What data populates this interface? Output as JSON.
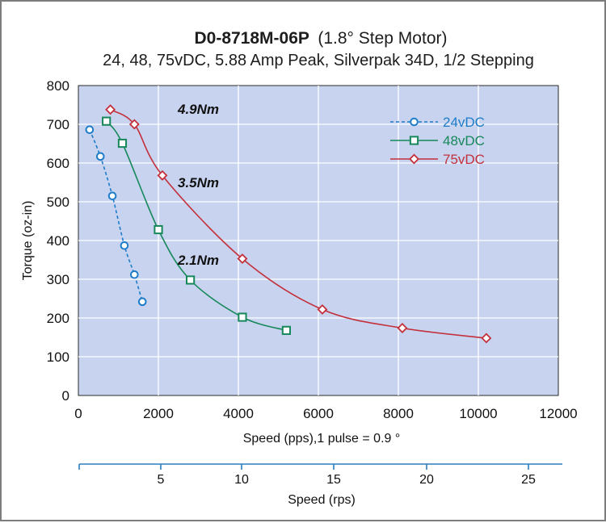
{
  "chart_data": {
    "type": "line",
    "title_bold": "D0-8718M-06P",
    "title_rest": "(1.8° Step Motor)",
    "subtitle": "24, 48, 75vDC, 5.88 Amp Peak, Silverpak 34D, 1/2 Stepping",
    "xlabel": "Speed (pps),1 pulse = 0.9   °",
    "ylabel": "Torque (oz-in)",
    "xlim": [
      0,
      12000
    ],
    "ylim": [
      0,
      800
    ],
    "x_ticks": [
      "0",
      "2000",
      "4000",
      "6000",
      "8000",
      "10000",
      "12000"
    ],
    "y_ticks": [
      "0",
      "100",
      "200",
      "300",
      "400",
      "500",
      "600",
      "700",
      "800"
    ],
    "grid": true,
    "legend_position": "top-right",
    "series": [
      {
        "name": "24vDC",
        "color": "#1e7cc8",
        "marker": "circle",
        "dashed": true,
        "points": [
          [
            280,
            686
          ],
          [
            550,
            617
          ],
          [
            850,
            515
          ],
          [
            1150,
            387
          ],
          [
            1400,
            312
          ],
          [
            1600,
            242
          ]
        ]
      },
      {
        "name": "48vDC",
        "color": "#17885a",
        "marker": "square",
        "dashed": false,
        "points": [
          [
            700,
            708
          ],
          [
            1100,
            651
          ],
          [
            2000,
            428
          ],
          [
            2800,
            298
          ],
          [
            4100,
            202
          ],
          [
            5200,
            168
          ]
        ]
      },
      {
        "name": "75vDC",
        "color": "#c4303c",
        "marker": "diamond",
        "dashed": false,
        "points": [
          [
            800,
            738
          ],
          [
            1400,
            700
          ],
          [
            2100,
            568
          ],
          [
            4100,
            353
          ],
          [
            6100,
            222
          ],
          [
            8100,
            174
          ],
          [
            10200,
            148
          ]
        ]
      }
    ],
    "annotations": [
      {
        "text": "4.9Nm",
        "x": 3000,
        "y": 740
      },
      {
        "text": "3.5Nm",
        "x": 3000,
        "y": 550
      },
      {
        "text": "2.1Nm",
        "x": 3000,
        "y": 350
      }
    ],
    "secondary_axis": {
      "label": "Speed (rps)",
      "ticks": [
        "5",
        "10",
        "15",
        "20",
        "25"
      ]
    }
  }
}
